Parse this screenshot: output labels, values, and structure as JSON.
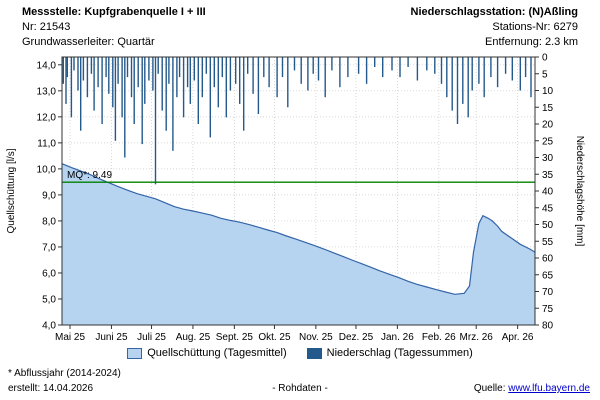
{
  "header": {
    "station_title": "Messstelle: Kupfgrabenquelle I + III",
    "station_nr": "Nr: 21543",
    "aquifer": "Grundwasserleiter: Quartär",
    "precip_station_title": "Niederschlagsstation: (N)Aßling",
    "precip_station_nr": "Stations-Nr: 6279",
    "precip_distance": "Entfernung: 2.3 km"
  },
  "chart_data": {
    "type": [
      "area",
      "bar"
    ],
    "x_axis": {
      "labels": [
        "Mai 25",
        "Juni 25",
        "Juli 25",
        "Aug. 25",
        "Sept. 25",
        "Okt. 25",
        "Nov. 25",
        "Dez. 25",
        "Jan. 26",
        "Feb. 26",
        "Mrz. 26",
        "Apr. 26"
      ],
      "month_start_days": [
        6,
        37,
        67,
        98,
        129,
        159,
        190,
        220,
        251,
        282,
        310,
        341
      ],
      "span_days": 354
    },
    "y_left": {
      "label": "Quellschüttung [l/s]",
      "min": 4,
      "max": 14.3,
      "tick_values": [
        4,
        5,
        6,
        7,
        8,
        9,
        10,
        11,
        12,
        13,
        14
      ],
      "tick_labels": [
        "4,0",
        "5,0",
        "6,0",
        "7,0",
        "8,0",
        "9,0",
        "10,0",
        "11,0",
        "12,0",
        "13,0",
        "14,0"
      ]
    },
    "y_right": {
      "label": "Niederschlagshöhe [mm]",
      "min": 0,
      "max": 80,
      "tick_step": 5,
      "inverted": true
    },
    "reference_line": {
      "label": "MQ*: 9.49",
      "value": 9.49
    },
    "series": [
      {
        "name": "Quellschüttung (Tagesmittel)",
        "type": "area",
        "unit": "l/s",
        "points": [
          [
            0,
            10.2
          ],
          [
            7,
            10.05
          ],
          [
            14,
            9.92
          ],
          [
            21,
            9.78
          ],
          [
            28,
            9.62
          ],
          [
            35,
            9.47
          ],
          [
            42,
            9.32
          ],
          [
            49,
            9.18
          ],
          [
            56,
            9.05
          ],
          [
            63,
            8.95
          ],
          [
            70,
            8.85
          ],
          [
            77,
            8.7
          ],
          [
            84,
            8.55
          ],
          [
            91,
            8.45
          ],
          [
            98,
            8.38
          ],
          [
            105,
            8.3
          ],
          [
            112,
            8.22
          ],
          [
            119,
            8.1
          ],
          [
            126,
            8.02
          ],
          [
            133,
            7.95
          ],
          [
            140,
            7.86
          ],
          [
            147,
            7.76
          ],
          [
            154,
            7.65
          ],
          [
            161,
            7.55
          ],
          [
            168,
            7.42
          ],
          [
            175,
            7.3
          ],
          [
            182,
            7.18
          ],
          [
            189,
            7.05
          ],
          [
            196,
            6.92
          ],
          [
            203,
            6.78
          ],
          [
            210,
            6.64
          ],
          [
            217,
            6.5
          ],
          [
            224,
            6.36
          ],
          [
            231,
            6.22
          ],
          [
            238,
            6.08
          ],
          [
            245,
            5.95
          ],
          [
            252,
            5.82
          ],
          [
            259,
            5.68
          ],
          [
            266,
            5.56
          ],
          [
            273,
            5.46
          ],
          [
            280,
            5.36
          ],
          [
            287,
            5.27
          ],
          [
            294,
            5.18
          ],
          [
            301,
            5.22
          ],
          [
            305,
            5.5
          ],
          [
            308,
            6.8
          ],
          [
            312,
            7.9
          ],
          [
            315,
            8.2
          ],
          [
            319,
            8.1
          ],
          [
            322,
            8.0
          ],
          [
            326,
            7.8
          ],
          [
            329,
            7.6
          ],
          [
            336,
            7.35
          ],
          [
            343,
            7.1
          ],
          [
            350,
            6.92
          ],
          [
            354,
            6.8
          ]
        ]
      },
      {
        "name": "Niederschlag (Tagessummen)",
        "type": "bar",
        "unit": "mm",
        "points": [
          [
            1,
            8
          ],
          [
            3,
            14
          ],
          [
            4,
            6
          ],
          [
            7,
            18
          ],
          [
            9,
            4
          ],
          [
            12,
            10
          ],
          [
            14,
            22
          ],
          [
            16,
            7
          ],
          [
            19,
            12
          ],
          [
            22,
            5
          ],
          [
            24,
            16
          ],
          [
            27,
            9
          ],
          [
            30,
            20
          ],
          [
            33,
            6
          ],
          [
            35,
            11
          ],
          [
            38,
            15
          ],
          [
            40,
            25
          ],
          [
            42,
            8
          ],
          [
            45,
            18
          ],
          [
            47,
            30
          ],
          [
            49,
            6
          ],
          [
            52,
            12
          ],
          [
            54,
            20
          ],
          [
            57,
            9
          ],
          [
            60,
            26
          ],
          [
            62,
            14
          ],
          [
            65,
            7
          ],
          [
            68,
            10
          ],
          [
            70,
            38
          ],
          [
            72,
            5
          ],
          [
            75,
            16
          ],
          [
            78,
            22
          ],
          [
            80,
            8
          ],
          [
            83,
            28
          ],
          [
            86,
            12
          ],
          [
            88,
            6
          ],
          [
            91,
            18
          ],
          [
            94,
            9
          ],
          [
            96,
            14
          ],
          [
            99,
            7
          ],
          [
            102,
            20
          ],
          [
            105,
            12
          ],
          [
            108,
            5
          ],
          [
            111,
            24
          ],
          [
            114,
            9
          ],
          [
            117,
            15
          ],
          [
            120,
            6
          ],
          [
            123,
            18
          ],
          [
            126,
            10
          ],
          [
            130,
            8
          ],
          [
            133,
            14
          ],
          [
            136,
            22
          ],
          [
            139,
            5
          ],
          [
            143,
            11
          ],
          [
            147,
            17
          ],
          [
            151,
            6
          ],
          [
            155,
            9
          ],
          [
            161,
            12
          ],
          [
            165,
            6
          ],
          [
            169,
            15
          ],
          [
            174,
            4
          ],
          [
            179,
            8
          ],
          [
            184,
            10
          ],
          [
            188,
            5
          ],
          [
            192,
            7
          ],
          [
            197,
            12
          ],
          [
            202,
            4
          ],
          [
            208,
            9
          ],
          [
            214,
            6
          ],
          [
            222,
            5
          ],
          [
            228,
            8
          ],
          [
            234,
            3
          ],
          [
            240,
            6
          ],
          [
            247,
            4
          ],
          [
            253,
            6
          ],
          [
            259,
            3
          ],
          [
            266,
            7
          ],
          [
            273,
            4
          ],
          [
            279,
            5
          ],
          [
            284,
            8
          ],
          [
            288,
            12
          ],
          [
            292,
            16
          ],
          [
            296,
            20
          ],
          [
            300,
            14
          ],
          [
            304,
            18
          ],
          [
            307,
            10
          ],
          [
            312,
            8
          ],
          [
            316,
            12
          ],
          [
            321,
            6
          ],
          [
            326,
            9
          ],
          [
            332,
            5
          ],
          [
            337,
            7
          ],
          [
            343,
            10
          ],
          [
            347,
            6
          ],
          [
            351,
            12
          ]
        ]
      }
    ]
  },
  "legend": {
    "discharge": "Quellschüttung (Tagesmittel)",
    "precipitation": "Niederschlag (Tagessummen)"
  },
  "footer": {
    "note": "* Abflussjahr (2014-2024)",
    "created": "erstellt: 14.04.2026",
    "center": "- Rohdaten -",
    "source_label": "Quelle: ",
    "source_link": "www.lfu.bayern.de"
  },
  "colors": {
    "area_fill": "#b6d3f0",
    "area_line": "#3465a8",
    "bar": "#24598c",
    "reference": "#008000",
    "grid": "#c9c9c9",
    "border": "#333333",
    "link": "#0000cc"
  }
}
